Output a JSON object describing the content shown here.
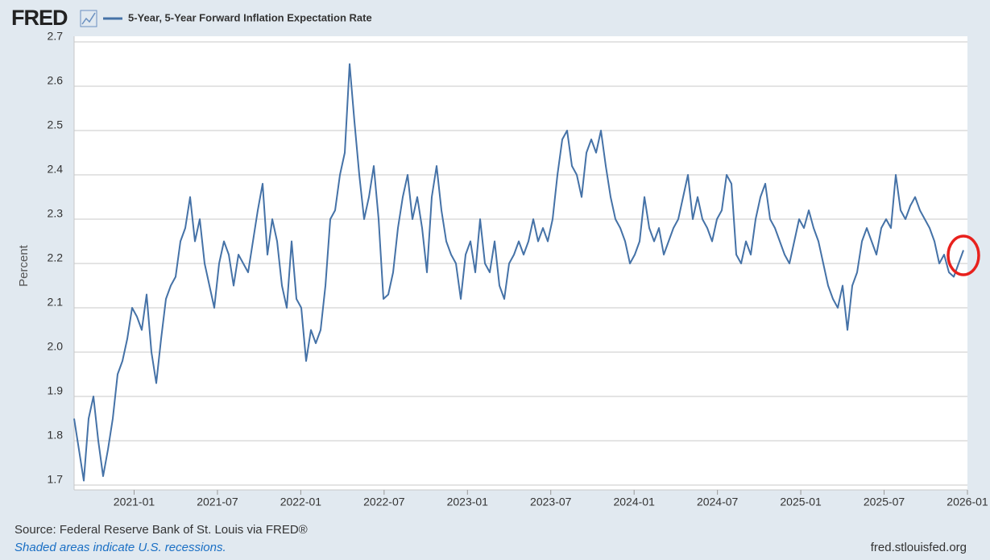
{
  "chart_data": {
    "type": "line",
    "brand": "FRED",
    "y_label": "Percent",
    "source": "Source: Federal Reserve Bank of St. Louis via FRED®",
    "note": "Shaded areas indicate U.S. recessions.",
    "site": "fred.stlouisfed.org",
    "x": [
      2020.64,
      2020.669,
      2020.698,
      2020.727,
      2020.756,
      2020.785,
      2020.814,
      2020.843,
      2020.872,
      2020.901,
      2020.93,
      2020.959,
      2020.988,
      2021.017,
      2021.046,
      2021.075,
      2021.104,
      2021.133,
      2021.162,
      2021.191,
      2021.22,
      2021.249,
      2021.278,
      2021.307,
      2021.336,
      2021.365,
      2021.394,
      2021.423,
      2021.452,
      2021.481,
      2021.51,
      2021.539,
      2021.568,
      2021.597,
      2021.626,
      2021.655,
      2021.684,
      2021.713,
      2021.742,
      2021.771,
      2021.8,
      2021.829,
      2021.858,
      2021.887,
      2021.916,
      2021.945,
      2021.974,
      2022.003,
      2022.032,
      2022.061,
      2022.09,
      2022.119,
      2022.148,
      2022.177,
      2022.206,
      2022.235,
      2022.264,
      2022.293,
      2022.322,
      2022.351,
      2022.38,
      2022.409,
      2022.438,
      2022.467,
      2022.496,
      2022.525,
      2022.554,
      2022.583,
      2022.612,
      2022.641,
      2022.67,
      2022.699,
      2022.728,
      2022.757,
      2022.786,
      2022.815,
      2022.844,
      2022.873,
      2022.902,
      2022.931,
      2022.96,
      2022.989,
      2023.018,
      2023.047,
      2023.076,
      2023.105,
      2023.134,
      2023.163,
      2023.192,
      2023.221,
      2023.25,
      2023.279,
      2023.308,
      2023.337,
      2023.366,
      2023.395,
      2023.424,
      2023.453,
      2023.482,
      2023.511,
      2023.54,
      2023.569,
      2023.598,
      2023.627,
      2023.656,
      2023.685,
      2023.714,
      2023.743,
      2023.772,
      2023.801,
      2023.83,
      2023.859,
      2023.888,
      2023.917,
      2023.946,
      2023.975,
      2024.004,
      2024.033,
      2024.062,
      2024.091,
      2024.12,
      2024.149,
      2024.178,
      2024.207,
      2024.236,
      2024.265,
      2024.294,
      2024.323,
      2024.352,
      2024.381,
      2024.41,
      2024.439,
      2024.468,
      2024.497,
      2024.526,
      2024.555,
      2024.584,
      2024.613,
      2024.642,
      2024.671,
      2024.7,
      2024.729,
      2024.758,
      2024.787,
      2024.816,
      2024.845,
      2024.874,
      2024.903,
      2024.932,
      2024.961,
      2024.99,
      2025.019,
      2025.048,
      2025.077,
      2025.106,
      2025.135,
      2025.164,
      2025.193,
      2025.222,
      2025.251,
      2025.28,
      2025.309,
      2025.338,
      2025.367,
      2025.396,
      2025.425,
      2025.454,
      2025.483,
      2025.512,
      2025.541,
      2025.57,
      2025.599,
      2025.628,
      2025.657,
      2025.686,
      2025.715,
      2025.744,
      2025.773,
      2025.802,
      2025.831,
      2025.86,
      2025.889,
      2025.918,
      2025.947,
      2025.976
    ],
    "series": [
      {
        "name": "5-Year, 5-Year Forward Inflation Expectation Rate",
        "color": "#4572a7",
        "values": [
          1.85,
          1.78,
          1.71,
          1.85,
          1.9,
          1.8,
          1.72,
          1.78,
          1.85,
          1.95,
          1.98,
          2.03,
          2.1,
          2.08,
          2.05,
          2.13,
          2.0,
          1.93,
          2.03,
          2.12,
          2.15,
          2.17,
          2.25,
          2.28,
          2.35,
          2.25,
          2.3,
          2.2,
          2.15,
          2.1,
          2.2,
          2.25,
          2.22,
          2.15,
          2.22,
          2.2,
          2.18,
          2.25,
          2.32,
          2.38,
          2.22,
          2.3,
          2.25,
          2.15,
          2.1,
          2.25,
          2.12,
          2.1,
          1.98,
          2.05,
          2.02,
          2.05,
          2.15,
          2.3,
          2.32,
          2.4,
          2.45,
          2.65,
          2.52,
          2.4,
          2.3,
          2.35,
          2.42,
          2.3,
          2.12,
          2.13,
          2.18,
          2.28,
          2.35,
          2.4,
          2.3,
          2.35,
          2.28,
          2.18,
          2.35,
          2.42,
          2.32,
          2.25,
          2.22,
          2.2,
          2.12,
          2.22,
          2.25,
          2.18,
          2.3,
          2.2,
          2.18,
          2.25,
          2.15,
          2.12,
          2.2,
          2.22,
          2.25,
          2.22,
          2.25,
          2.3,
          2.25,
          2.28,
          2.25,
          2.3,
          2.4,
          2.48,
          2.5,
          2.42,
          2.4,
          2.35,
          2.45,
          2.48,
          2.45,
          2.5,
          2.42,
          2.35,
          2.3,
          2.28,
          2.25,
          2.2,
          2.22,
          2.25,
          2.35,
          2.28,
          2.25,
          2.28,
          2.22,
          2.25,
          2.28,
          2.3,
          2.35,
          2.4,
          2.3,
          2.35,
          2.3,
          2.28,
          2.25,
          2.3,
          2.32,
          2.4,
          2.38,
          2.22,
          2.2,
          2.25,
          2.22,
          2.3,
          2.35,
          2.38,
          2.3,
          2.28,
          2.25,
          2.22,
          2.2,
          2.25,
          2.3,
          2.28,
          2.32,
          2.28,
          2.25,
          2.2,
          2.15,
          2.12,
          2.1,
          2.15,
          2.05,
          2.15,
          2.18,
          2.25,
          2.28,
          2.25,
          2.22,
          2.28,
          2.3,
          2.28,
          2.4,
          2.32,
          2.3,
          2.33,
          2.35,
          2.32,
          2.3,
          2.28,
          2.25,
          2.2,
          2.22,
          2.18,
          2.17,
          2.2,
          2.23
        ]
      }
    ],
    "xlim": [
      2020.64,
      2026.0
    ],
    "xticks": [
      {
        "value": 2021,
        "label": "2021-01"
      },
      {
        "value": 2021.5,
        "label": "2021-07"
      },
      {
        "value": 2022,
        "label": "2022-01"
      },
      {
        "value": 2022.5,
        "label": "2022-07"
      },
      {
        "value": 2023,
        "label": "2023-01"
      },
      {
        "value": 2023.5,
        "label": "2023-07"
      },
      {
        "value": 2024,
        "label": "2024-01"
      },
      {
        "value": 2024.5,
        "label": "2024-07"
      },
      {
        "value": 2025,
        "label": "2025-01"
      },
      {
        "value": 2025.5,
        "label": "2025-07"
      },
      {
        "value": 2026,
        "label": "2026-01"
      }
    ],
    "ylim": [
      1.7,
      2.7
    ],
    "yticks": [
      1.7,
      1.8,
      1.9,
      {
        "value": 2,
        "label": "2.0"
      },
      2.1,
      2.2,
      2.3,
      2.4,
      2.5,
      2.6,
      2.7
    ],
    "grid": true
  }
}
